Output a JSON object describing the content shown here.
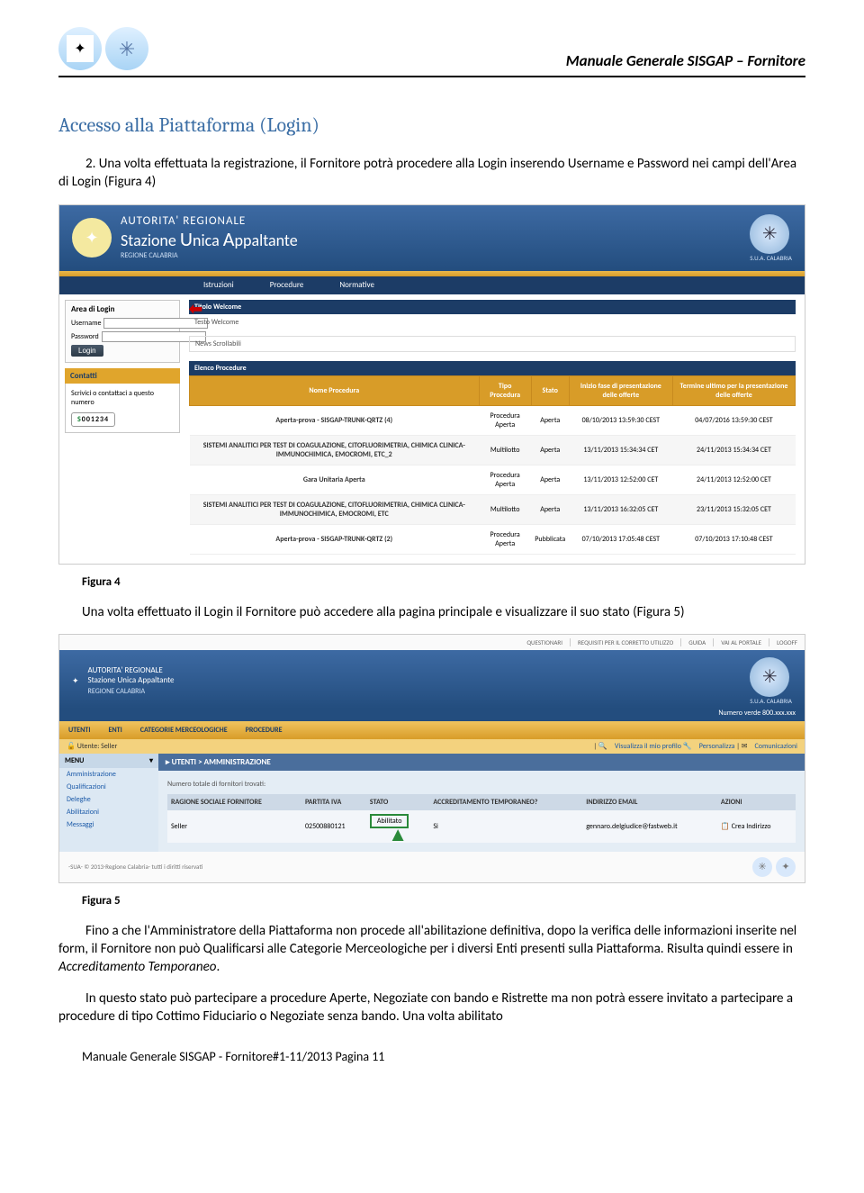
{
  "header": {
    "title": "Manuale Generale SISGAP – Fornitore"
  },
  "section_title": "Accesso alla Piattaforma (Login)",
  "para1_num": "2.",
  "para1": "Una volta effettuata la registrazione, il Fornitore potrà procedere alla Login inserendo Username e Password nei campi dell'Area di Login (Figura 4)",
  "fig4": {
    "caption": "Figura 4",
    "banner_l1": "AUTORITA' REGIONALE",
    "banner_l2a": "Stazione ",
    "banner_l2b": "U",
    "banner_l2c": "nica ",
    "banner_l2d": "A",
    "banner_l2e": "ppaltante",
    "region": "REGIONE CALABRIA",
    "sua": "S.U.A. CALABRIA",
    "nav": [
      "Istruzioni",
      "Procedure",
      "Normative"
    ],
    "login_title": "Area di Login",
    "lbl_user": "Username",
    "lbl_pass": "Password",
    "btn_login": "Login",
    "contatti": "Contatti",
    "cont_text": "Scrivici o contattaci a questo numero",
    "phone_pre": "S",
    "phone": "001234",
    "titolo_welcome": "Titolo Welcome",
    "testo_welcome": "Testo Welcome",
    "news": "News Scrollabili",
    "elenco": "Elenco Procedure",
    "th": [
      "Nome Procedura",
      "Tipo Procedura",
      "Stato",
      "Inizio fase di presentazione delle offerte",
      "Termine ultimo per la presentazione delle offerte"
    ],
    "rows": [
      [
        "Aperta-prova - SISGAP-TRUNK-QRTZ (4)",
        "Procedura Aperta",
        "Aperta",
        "08/10/2013 13:59:30 CEST",
        "04/07/2016 13:59:30 CEST"
      ],
      [
        "SISTEMI ANALITICI PER TEST DI COAGULAZIONE, CITOFLUORIMETRIA, CHIMICA CLINICA- IMMUNOCHIMICA, EMOCROMI, ETC_2",
        "Multilotto",
        "Aperta",
        "13/11/2013 15:34:34 CET",
        "24/11/2013 15:34:34 CET"
      ],
      [
        "Gara Unitaria Aperta",
        "Procedura Aperta",
        "Aperta",
        "13/11/2013 12:52:00 CET",
        "24/11/2013 12:52:00 CET"
      ],
      [
        "SISTEMI ANALITICI PER TEST DI COAGULAZIONE, CITOFLUORIMETRIA, CHIMICA CLINICA- IMMUNOCHIMICA, EMOCROMI, ETC",
        "Multilotto",
        "Aperta",
        "13/11/2013 16:32:05 CET",
        "23/11/2013 15:32:05 CET"
      ],
      [
        "Aperta-prova - SISGAP-TRUNK-QRTZ (2)",
        "Procedura Aperta",
        "Pubblicata",
        "07/10/2013 17:05:48 CEST",
        "07/10/2013 17:10:48 CEST"
      ]
    ]
  },
  "para2_pre": "Una volta effettuato il Login il Fornitore può accedere alla pagina principale e visualizzare il suo stato (",
  "para2_link": "Figura 5",
  "para2_post": ")",
  "fig5": {
    "caption": "Figura 5",
    "toplinks": [
      "QUESTIONARI",
      "REQUISITI PER IL CORRETTO UTILIZZO",
      "GUIDA",
      "VAI AL PORTALE",
      "LOGOFF"
    ],
    "numverde": "Numero verde 800.xxx.xxx",
    "menu": [
      "UTENTI",
      "ENTI",
      "CATEGORIE MERCEOLOGICHE",
      "PROCEDURE"
    ],
    "utente_lbl": "Utente: Seller",
    "rlinks": [
      "Visualizza il mio profilo",
      "Personalizza",
      "Comunicazioni"
    ],
    "menu_hdr": "MENU",
    "side_items": [
      "Amministrazione",
      "Qualificazioni",
      "Deleghe",
      "Abilitazioni",
      "Messaggi"
    ],
    "breadcrumb": "UTENTI > AMMINISTRAZIONE",
    "tot": "Numero totale di fornitori trovati:",
    "th": [
      "RAGIONE SOCIALE FORNITORE",
      "PARTITA IVA",
      "STATO",
      "ACCREDITAMENTO TEMPORANEO?",
      "INDIRIZZO EMAIL",
      "AZIONI"
    ],
    "row": [
      "Seller",
      "02500880121",
      "Abilitato",
      "Si",
      "gennaro.delgiudice@fastweb.it",
      "Crea Indirizzo"
    ],
    "footer": "-SUA- © 2013-Regione Calabria- tutti i diritti riservati"
  },
  "para3a": "Fino a che l'Amministratore della Piattaforma non procede all'abilitazione definitiva, dopo la verifica delle informazioni inserite nel form, il Fornitore non può Qualificarsi alle Categorie Merceologiche per i diversi Enti presenti sulla Piattaforma. Risulta quindi essere in ",
  "para3b": "Accreditamento Temporaneo",
  "para3c": ".",
  "para4": "In questo stato può partecipare a procedure Aperte, Negoziate con bando e Ristrette ma non potrà essere invitato a partecipare a procedure di tipo Cottimo Fiduciario o Negoziate senza bando. Una volta abilitato",
  "footer": "Manuale Generale SISGAP - Fornitore#1-11/2013 Pagina 11"
}
